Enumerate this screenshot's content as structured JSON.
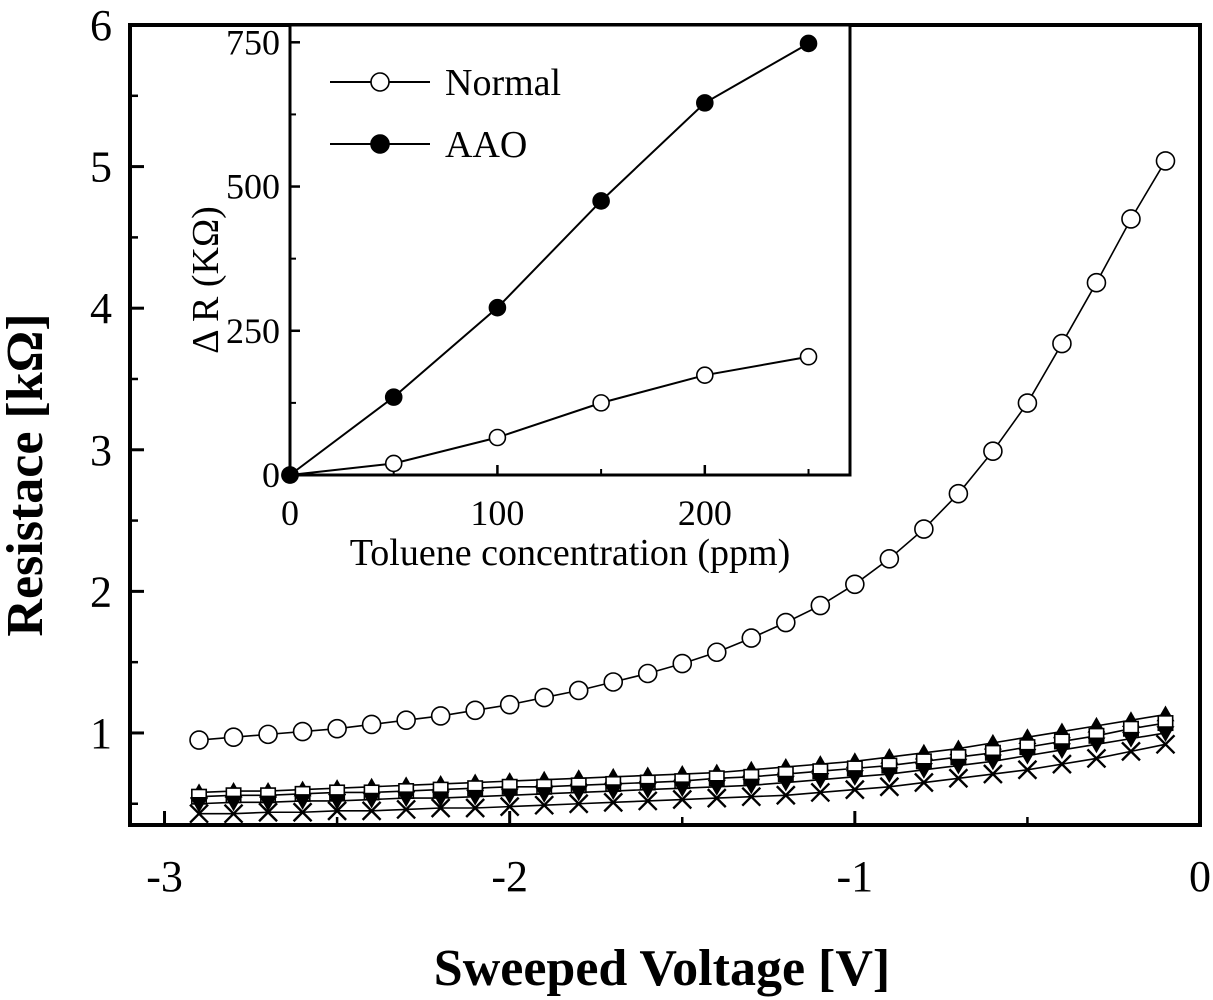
{
  "chart_data": [
    {
      "type": "line",
      "title": "",
      "xlabel": "Sweeped Voltage [V]",
      "ylabel": "Resistace [kΩ]",
      "xlim": [
        -3.1,
        0.0
      ],
      "ylim": [
        0.35,
        6.0
      ],
      "xticks": [
        -3,
        -2,
        -1,
        0
      ],
      "yticks": [
        1,
        2,
        3,
        4,
        5,
        6
      ],
      "x": [
        -2.9,
        -2.8,
        -2.7,
        -2.6,
        -2.5,
        -2.4,
        -2.3,
        -2.2,
        -2.1,
        -2.0,
        -1.9,
        -1.8,
        -1.7,
        -1.6,
        -1.5,
        -1.4,
        -1.3,
        -1.2,
        -1.1,
        -1.0,
        -0.9,
        -0.8,
        -0.7,
        -0.6,
        -0.5,
        -0.4,
        -0.3,
        -0.2,
        -0.1
      ],
      "series": [
        {
          "marker": "open-circle",
          "values": [
            0.95,
            0.97,
            0.99,
            1.01,
            1.03,
            1.06,
            1.09,
            1.12,
            1.16,
            1.2,
            1.25,
            1.3,
            1.36,
            1.42,
            1.49,
            1.57,
            1.67,
            1.78,
            1.9,
            2.05,
            2.23,
            2.44,
            2.69,
            2.99,
            3.33,
            3.75,
            4.18,
            4.63,
            5.04
          ]
        },
        {
          "marker": "filled-triangle-up",
          "values": [
            0.58,
            0.59,
            0.59,
            0.6,
            0.61,
            0.62,
            0.63,
            0.64,
            0.65,
            0.66,
            0.67,
            0.68,
            0.69,
            0.7,
            0.71,
            0.72,
            0.74,
            0.76,
            0.78,
            0.8,
            0.83,
            0.86,
            0.89,
            0.93,
            0.97,
            1.01,
            1.05,
            1.09,
            1.13
          ]
        },
        {
          "marker": "open-square",
          "values": [
            0.55,
            0.56,
            0.56,
            0.57,
            0.58,
            0.58,
            0.59,
            0.6,
            0.61,
            0.62,
            0.62,
            0.63,
            0.64,
            0.65,
            0.66,
            0.68,
            0.69,
            0.71,
            0.73,
            0.75,
            0.77,
            0.8,
            0.83,
            0.86,
            0.9,
            0.94,
            0.98,
            1.03,
            1.07
          ]
        },
        {
          "marker": "filled-triangle-down",
          "values": [
            0.5,
            0.51,
            0.51,
            0.52,
            0.52,
            0.53,
            0.54,
            0.54,
            0.55,
            0.56,
            0.57,
            0.58,
            0.59,
            0.6,
            0.61,
            0.62,
            0.63,
            0.65,
            0.67,
            0.69,
            0.71,
            0.74,
            0.77,
            0.8,
            0.84,
            0.88,
            0.92,
            0.96,
            1.0
          ]
        },
        {
          "marker": "cross",
          "values": [
            0.43,
            0.43,
            0.44,
            0.44,
            0.45,
            0.45,
            0.46,
            0.47,
            0.47,
            0.48,
            0.49,
            0.5,
            0.51,
            0.52,
            0.53,
            0.54,
            0.55,
            0.56,
            0.58,
            0.6,
            0.62,
            0.65,
            0.68,
            0.71,
            0.74,
            0.78,
            0.82,
            0.87,
            0.92
          ]
        }
      ]
    },
    {
      "type": "line",
      "title": "",
      "xlabel": "Toluene concentration (ppm)",
      "ylabel": "Δ R (KΩ)",
      "xlim": [
        0,
        270
      ],
      "ylim": [
        0,
        780
      ],
      "xticks": [
        0,
        100,
        200
      ],
      "yticks": [
        0,
        250,
        500,
        750
      ],
      "x": [
        0,
        50,
        100,
        150,
        200,
        250
      ],
      "legend_position": "top-left",
      "series": [
        {
          "name": "Normal",
          "marker": "open-circle",
          "values": [
            0,
            20,
            65,
            125,
            173,
            205
          ]
        },
        {
          "name": "AAO",
          "marker": "filled-circle",
          "values": [
            0,
            135,
            290,
            475,
            645,
            748
          ]
        }
      ]
    }
  ]
}
